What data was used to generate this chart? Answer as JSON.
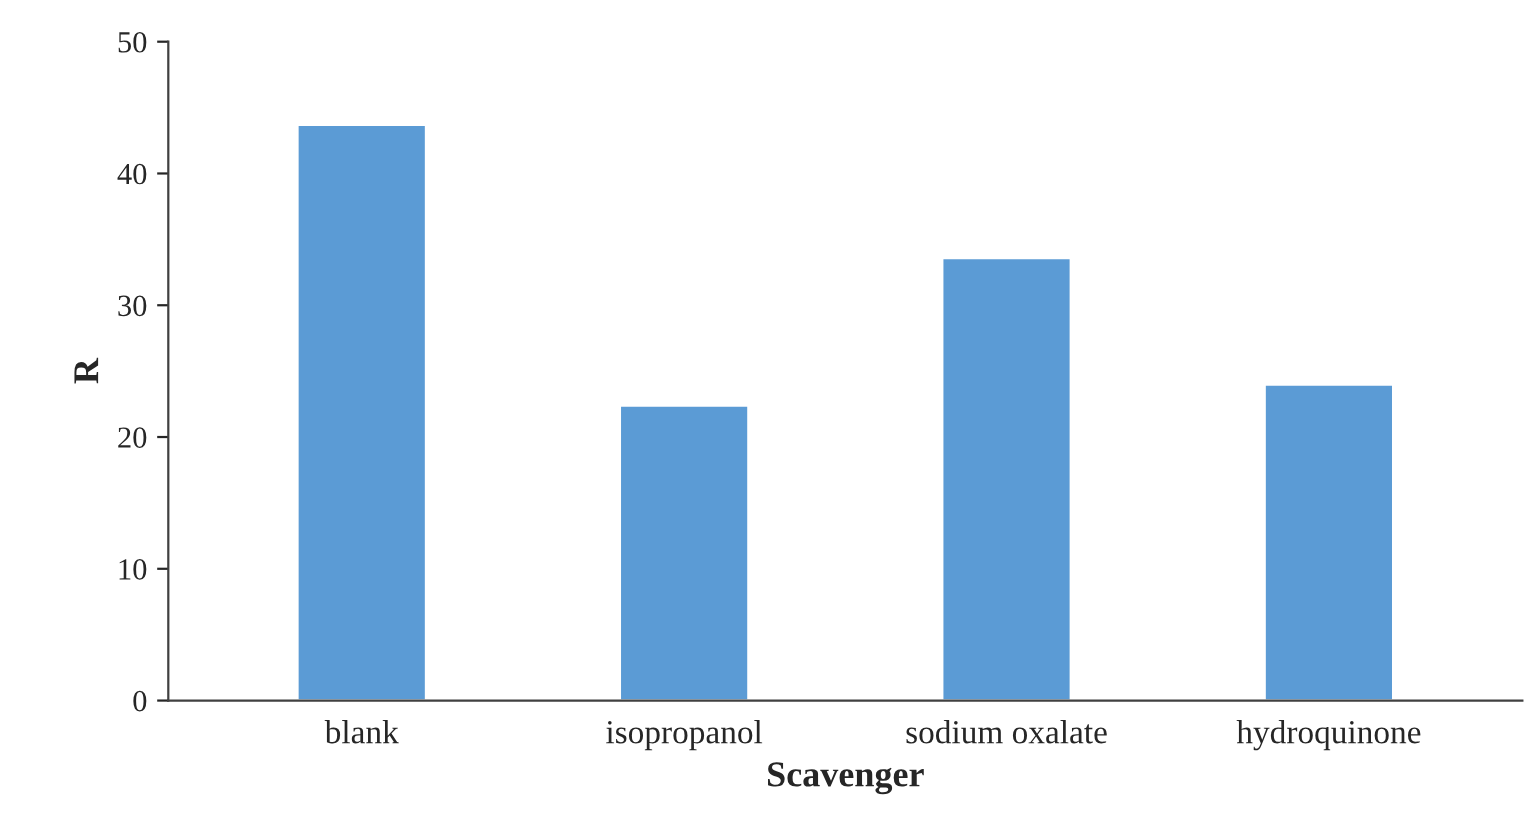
{
  "chart_data": {
    "type": "bar",
    "xlabel": "Scavenger",
    "ylabel": "R",
    "categories": [
      "blank",
      "isopropanol",
      "sodium oxalate",
      "hydroquinone"
    ],
    "values": [
      43.7,
      22.4,
      33.6,
      24.0
    ],
    "color": "#5b9bd5",
    "ylim": [
      0,
      50
    ],
    "yticks": [
      0,
      10,
      20,
      30,
      40,
      50
    ],
    "grid": false,
    "legend": false
  }
}
